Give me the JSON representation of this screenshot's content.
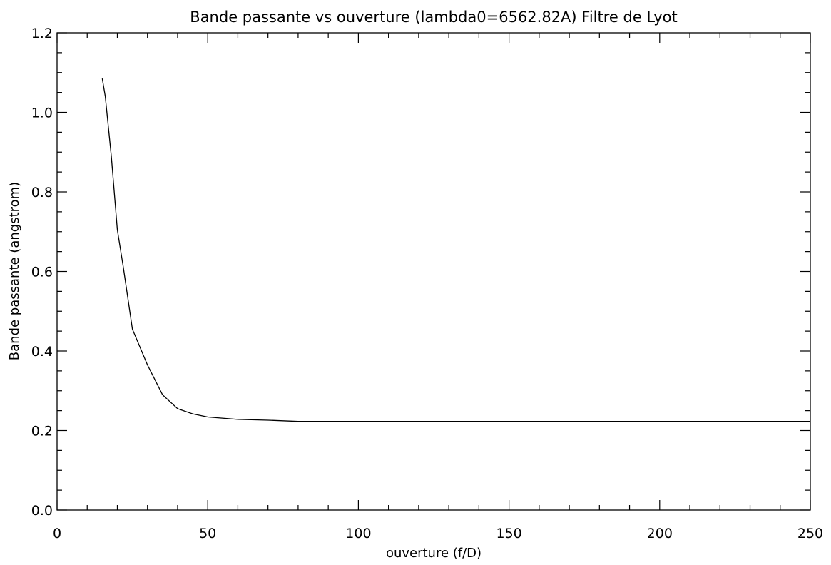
{
  "chart_data": {
    "type": "line",
    "title": "Bande passante vs ouverture (lambda0=6562.82A) Filtre de Lyot",
    "xlabel": "ouverture (f/D)",
    "ylabel": "Bande passante (angstrom)",
    "xlim": [
      0,
      250
    ],
    "ylim": [
      0.0,
      1.2
    ],
    "x_ticks": [
      0,
      50,
      100,
      150,
      200,
      250
    ],
    "x_tick_labels": [
      "0",
      "50",
      "100",
      "150",
      "200",
      "250"
    ],
    "x_minor_step": 10,
    "y_ticks": [
      0.0,
      0.2,
      0.4,
      0.6,
      0.8,
      1.0,
      1.2
    ],
    "y_tick_labels": [
      "0.0",
      "0.2",
      "0.4",
      "0.6",
      "0.8",
      "1.0",
      "1.2"
    ],
    "y_minor_step": 0.05,
    "grid": false,
    "legend": "none",
    "color": "#000000",
    "series": [
      {
        "x": [
          15,
          16,
          18,
          20,
          22,
          25,
          30,
          35,
          40,
          45,
          50,
          60,
          70,
          80,
          90,
          100,
          120,
          150,
          200,
          250
        ],
        "y": [
          1.085,
          1.04,
          0.89,
          0.705,
          0.61,
          0.455,
          0.365,
          0.29,
          0.255,
          0.242,
          0.234,
          0.228,
          0.226,
          0.223,
          0.223,
          0.223,
          0.223,
          0.223,
          0.223,
          0.223
        ]
      }
    ]
  }
}
